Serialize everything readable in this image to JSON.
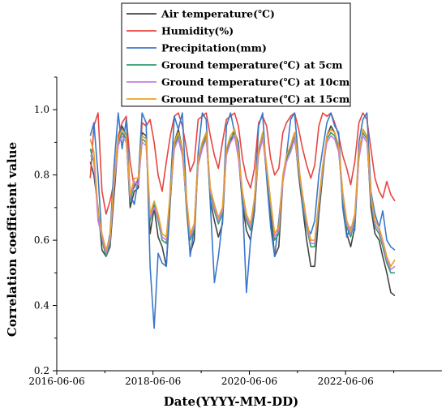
{
  "chart_data": {
    "type": "line",
    "title": "",
    "xlabel": "Date(YYYY-MM-DD)",
    "ylabel": "Correlation coefficient value",
    "xlim": [
      "2016-06-06",
      "2024-06-06"
    ],
    "ylim": [
      0.2,
      1.1
    ],
    "x_ticks": [
      "2016-06-06",
      "2018-06-06",
      "2020-06-06",
      "2022-06-06"
    ],
    "y_ticks": [
      "0.2",
      "0.4",
      "0.6",
      "0.8",
      "1.0"
    ],
    "grid": false,
    "legend_position": "top",
    "x": [
      "2017-02",
      "2017-03",
      "2017-04",
      "2017-05",
      "2017-06",
      "2017-07",
      "2017-08",
      "2017-09",
      "2017-10",
      "2017-11",
      "2017-12",
      "2018-01",
      "2018-02",
      "2018-03",
      "2018-04",
      "2018-05",
      "2018-06",
      "2018-07",
      "2018-08",
      "2018-09",
      "2018-10",
      "2018-11",
      "2018-12",
      "2019-01",
      "2019-02",
      "2019-03",
      "2019-04",
      "2019-05",
      "2019-06",
      "2019-07",
      "2019-08",
      "2019-09",
      "2019-10",
      "2019-11",
      "2019-12",
      "2020-01",
      "2020-02",
      "2020-03",
      "2020-04",
      "2020-05",
      "2020-06",
      "2020-07",
      "2020-08",
      "2020-09",
      "2020-10",
      "2020-11",
      "2020-12",
      "2021-01",
      "2021-02",
      "2021-03",
      "2021-04",
      "2021-05",
      "2021-06",
      "2021-07",
      "2021-08",
      "2021-09",
      "2021-10",
      "2021-11",
      "2021-12",
      "2022-01",
      "2022-02",
      "2022-03",
      "2022-04",
      "2022-05",
      "2022-06",
      "2022-07",
      "2022-08",
      "2022-09",
      "2022-10",
      "2022-11",
      "2022-12",
      "2023-01",
      "2023-02",
      "2023-03",
      "2023-04",
      "2023-05",
      "2023-06"
    ],
    "series": [
      {
        "name": "Air temperature(℃)",
        "color": "#444444",
        "values": [
          0.84,
          0.8,
          0.7,
          0.57,
          0.55,
          0.58,
          0.74,
          0.9,
          0.95,
          0.92,
          0.7,
          0.75,
          0.76,
          0.93,
          0.92,
          0.62,
          0.7,
          0.61,
          0.58,
          0.52,
          0.72,
          0.9,
          0.94,
          0.88,
          0.7,
          0.56,
          0.6,
          0.85,
          0.9,
          0.93,
          0.72,
          0.66,
          0.61,
          0.65,
          0.88,
          0.9,
          0.94,
          0.86,
          0.71,
          0.63,
          0.6,
          0.69,
          0.87,
          0.93,
          0.8,
          0.68,
          0.55,
          0.58,
          0.78,
          0.85,
          0.89,
          0.93,
          0.8,
          0.7,
          0.6,
          0.52,
          0.52,
          0.68,
          0.8,
          0.92,
          0.95,
          0.93,
          0.88,
          0.72,
          0.62,
          0.58,
          0.64,
          0.86,
          0.94,
          0.92,
          0.7,
          0.62,
          0.6,
          0.55,
          0.5,
          0.44,
          0.43
        ]
      },
      {
        "name": "Humidity(%)",
        "color": "#e8443e",
        "values": [
          0.79,
          0.95,
          0.99,
          0.75,
          0.68,
          0.72,
          0.78,
          0.92,
          0.96,
          0.98,
          0.84,
          0.76,
          0.79,
          0.96,
          0.95,
          0.97,
          0.9,
          0.8,
          0.75,
          0.84,
          0.92,
          0.98,
          0.99,
          0.95,
          0.88,
          0.81,
          0.84,
          0.97,
          0.98,
          0.99,
          0.92,
          0.86,
          0.82,
          0.9,
          0.97,
          0.98,
          0.99,
          0.95,
          0.85,
          0.79,
          0.76,
          0.82,
          0.96,
          0.98,
          0.95,
          0.85,
          0.8,
          0.82,
          0.93,
          0.96,
          0.98,
          0.99,
          0.94,
          0.88,
          0.83,
          0.79,
          0.83,
          0.95,
          0.99,
          0.98,
          0.99,
          0.96,
          0.92,
          0.86,
          0.82,
          0.77,
          0.84,
          0.96,
          0.99,
          0.97,
          0.88,
          0.79,
          0.75,
          0.73,
          0.78,
          0.74,
          0.72
        ]
      },
      {
        "name": "Precipitation(mm)",
        "color": "#3a78c9",
        "values": [
          0.92,
          0.96,
          0.8,
          0.6,
          0.56,
          0.62,
          0.83,
          0.99,
          0.88,
          0.97,
          0.74,
          0.71,
          0.79,
          0.99,
          0.96,
          0.52,
          0.33,
          0.56,
          0.53,
          0.52,
          0.76,
          0.98,
          0.94,
          0.99,
          0.73,
          0.55,
          0.64,
          0.87,
          0.99,
          0.97,
          0.71,
          0.47,
          0.55,
          0.66,
          0.95,
          0.99,
          0.93,
          0.9,
          0.72,
          0.44,
          0.6,
          0.71,
          0.95,
          0.99,
          0.79,
          0.64,
          0.55,
          0.66,
          0.79,
          0.86,
          0.97,
          0.99,
          0.84,
          0.7,
          0.64,
          0.62,
          0.66,
          0.8,
          0.88,
          0.96,
          0.99,
          0.95,
          0.93,
          0.7,
          0.61,
          0.64,
          0.63,
          0.9,
          0.97,
          0.99,
          0.75,
          0.68,
          0.64,
          0.69,
          0.6,
          0.58,
          0.57
        ]
      },
      {
        "name": "Ground temperature(℃) at 5cm",
        "color": "#2e9e6e",
        "values": [
          0.88,
          0.84,
          0.68,
          0.6,
          0.55,
          0.59,
          0.78,
          0.9,
          0.93,
          0.91,
          0.72,
          0.77,
          0.78,
          0.91,
          0.9,
          0.66,
          0.71,
          0.66,
          0.6,
          0.59,
          0.73,
          0.89,
          0.92,
          0.87,
          0.71,
          0.6,
          0.63,
          0.84,
          0.89,
          0.92,
          0.74,
          0.69,
          0.65,
          0.68,
          0.87,
          0.91,
          0.93,
          0.86,
          0.73,
          0.66,
          0.63,
          0.71,
          0.87,
          0.92,
          0.81,
          0.7,
          0.6,
          0.62,
          0.79,
          0.85,
          0.88,
          0.92,
          0.81,
          0.72,
          0.64,
          0.58,
          0.58,
          0.7,
          0.81,
          0.91,
          0.93,
          0.92,
          0.88,
          0.73,
          0.64,
          0.61,
          0.66,
          0.86,
          0.93,
          0.91,
          0.72,
          0.64,
          0.62,
          0.58,
          0.53,
          0.5,
          0.5
        ]
      },
      {
        "name": "Ground temperature(℃) at 10cm",
        "color": "#c47ee8",
        "values": [
          0.86,
          0.85,
          0.66,
          0.61,
          0.56,
          0.6,
          0.77,
          0.89,
          0.92,
          0.9,
          0.73,
          0.78,
          0.77,
          0.9,
          0.89,
          0.67,
          0.7,
          0.67,
          0.61,
          0.6,
          0.74,
          0.88,
          0.91,
          0.86,
          0.72,
          0.61,
          0.64,
          0.83,
          0.88,
          0.91,
          0.75,
          0.7,
          0.66,
          0.69,
          0.86,
          0.9,
          0.92,
          0.85,
          0.74,
          0.67,
          0.64,
          0.72,
          0.86,
          0.91,
          0.82,
          0.71,
          0.61,
          0.63,
          0.78,
          0.84,
          0.87,
          0.91,
          0.82,
          0.73,
          0.65,
          0.59,
          0.59,
          0.71,
          0.82,
          0.9,
          0.92,
          0.91,
          0.87,
          0.74,
          0.65,
          0.62,
          0.67,
          0.85,
          0.92,
          0.9,
          0.73,
          0.65,
          0.63,
          0.59,
          0.54,
          0.51,
          0.52
        ]
      },
      {
        "name": "Ground temperature(℃) at 15cm",
        "color": "#e8a02e",
        "values": [
          0.91,
          0.87,
          0.69,
          0.62,
          0.57,
          0.61,
          0.79,
          0.91,
          0.94,
          0.92,
          0.74,
          0.79,
          0.79,
          0.92,
          0.91,
          0.68,
          0.72,
          0.68,
          0.62,
          0.61,
          0.75,
          0.9,
          0.93,
          0.88,
          0.73,
          0.62,
          0.65,
          0.85,
          0.9,
          0.93,
          0.76,
          0.71,
          0.67,
          0.7,
          0.88,
          0.92,
          0.94,
          0.87,
          0.75,
          0.68,
          0.65,
          0.73,
          0.88,
          0.93,
          0.83,
          0.72,
          0.62,
          0.64,
          0.8,
          0.86,
          0.89,
          0.93,
          0.83,
          0.74,
          0.66,
          0.6,
          0.6,
          0.72,
          0.83,
          0.92,
          0.94,
          0.93,
          0.89,
          0.75,
          0.66,
          0.63,
          0.68,
          0.87,
          0.94,
          0.92,
          0.74,
          0.66,
          0.64,
          0.6,
          0.55,
          0.52,
          0.54
        ]
      }
    ]
  }
}
